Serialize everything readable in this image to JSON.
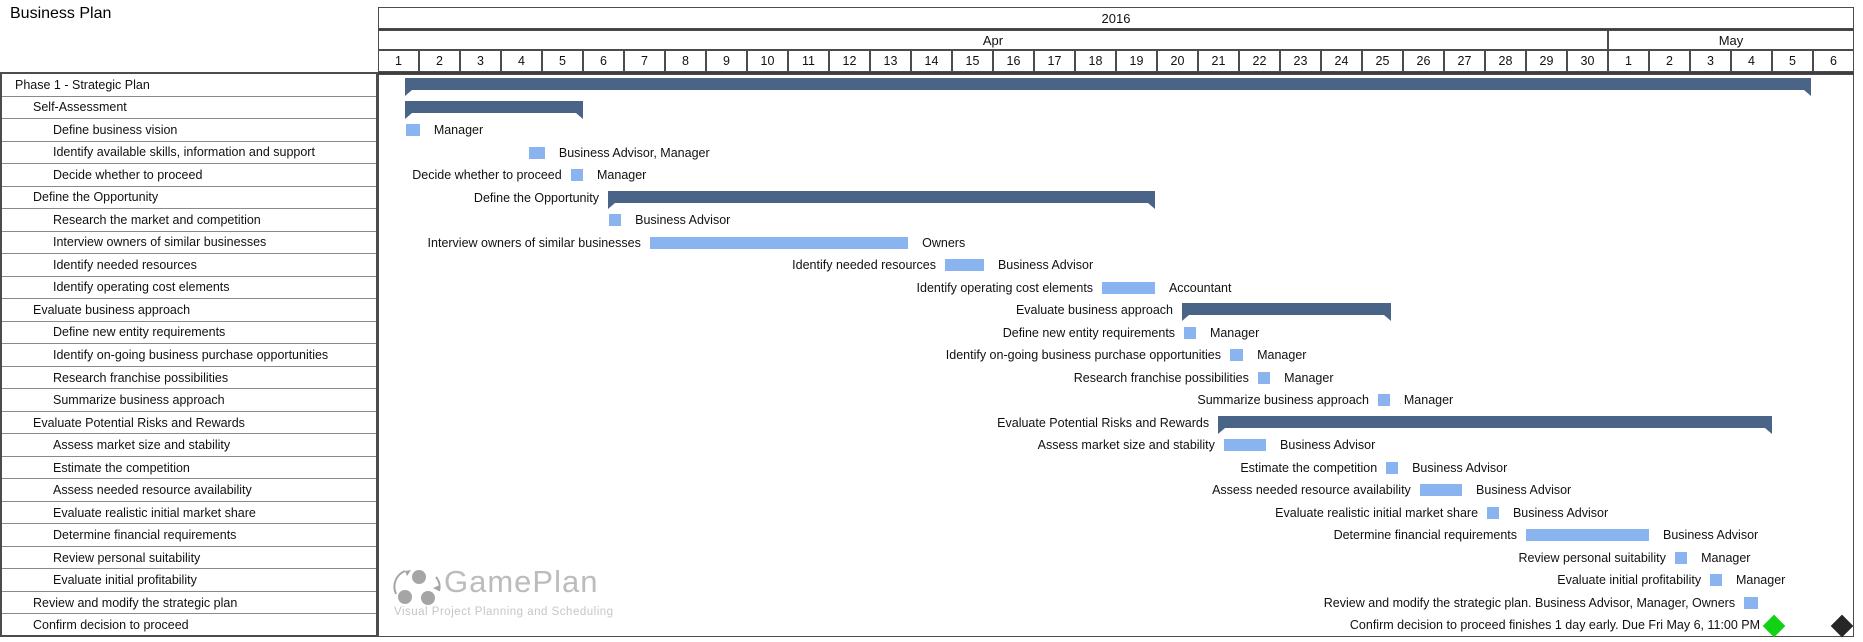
{
  "title": "Business Plan",
  "timeline": {
    "year": "2016",
    "months": [
      {
        "label": "Apr",
        "days": 30
      },
      {
        "label": "May",
        "days": 6
      }
    ]
  },
  "watermark": {
    "brand": "GamePlan",
    "tagline": "Visual Project Planning and Scheduling",
    "logo_icon": "three-circles-cycle-arrows"
  },
  "colors": {
    "summary_bar": "#4a6488",
    "task_bar": "#8ab4f0",
    "milestone_early_finish": "#15d115",
    "milestone_due": "#262626",
    "grid_dark": "#4c4c4c",
    "grid_mid": "#8a8a8a",
    "watermark_gray": "#bcbcbc"
  },
  "chart_data": {
    "type": "gantt",
    "title": "Business Plan",
    "time_axis": {
      "year": "2016",
      "months": [
        {
          "label": "Apr",
          "days": 30
        },
        {
          "label": "May",
          "days": 6
        }
      ],
      "day_origin": "days measured from Apr 1, 2016"
    },
    "legend": "none",
    "tasks": [
      {
        "name": "Phase 1 - Strategic Plan",
        "indent": 0,
        "kind": "summary",
        "start_day": 0.66,
        "end_day": 34.95,
        "resource": "",
        "show_label_left": false
      },
      {
        "name": "Self-Assessment",
        "indent": 1,
        "kind": "summary",
        "start_day": 0.66,
        "end_day": 5.0,
        "resource": "",
        "show_label_left": false
      },
      {
        "name": "Define business vision",
        "indent": 2,
        "kind": "task",
        "start_day": 0.68,
        "end_day": 1.02,
        "resource": "Manager",
        "show_label_left": false
      },
      {
        "name": "Identify available skills, information and support",
        "indent": 2,
        "kind": "task",
        "start_day": 3.68,
        "end_day": 4.07,
        "resource": "Business Advisor, Manager",
        "show_label_left": false
      },
      {
        "name": "Decide whether to proceed",
        "indent": 2,
        "kind": "task",
        "start_day": 4.7,
        "end_day": 5.0,
        "resource": "Manager",
        "show_label_left": true
      },
      {
        "name": "Define the Opportunity",
        "indent": 1,
        "kind": "summary",
        "start_day": 5.61,
        "end_day": 18.95,
        "resource": "",
        "show_label_left": true
      },
      {
        "name": "Research the market and competition",
        "indent": 2,
        "kind": "task",
        "start_day": 5.63,
        "end_day": 5.93,
        "resource": "Business Advisor",
        "show_label_left": false
      },
      {
        "name": "Interview owners of similar businesses",
        "indent": 2,
        "kind": "task",
        "start_day": 6.63,
        "end_day": 12.93,
        "resource": "Owners",
        "show_label_left": true
      },
      {
        "name": "Identify needed resources",
        "indent": 2,
        "kind": "task",
        "start_day": 13.83,
        "end_day": 14.78,
        "resource": "Business Advisor",
        "show_label_left": true
      },
      {
        "name": "Identify operating cost elements",
        "indent": 2,
        "kind": "task",
        "start_day": 17.66,
        "end_day": 18.95,
        "resource": "Accountant",
        "show_label_left": true
      },
      {
        "name": "Evaluate business approach",
        "indent": 1,
        "kind": "summary",
        "start_day": 19.61,
        "end_day": 24.7,
        "resource": "",
        "show_label_left": true
      },
      {
        "name": "Define new entity requirements",
        "indent": 2,
        "kind": "task",
        "start_day": 19.66,
        "end_day": 19.95,
        "resource": "Manager",
        "show_label_left": true
      },
      {
        "name": "Identify on-going business purchase opportunities",
        "indent": 2,
        "kind": "task",
        "start_day": 20.78,
        "end_day": 21.1,
        "resource": "Manager",
        "show_label_left": true
      },
      {
        "name": "Research franchise possibilities",
        "indent": 2,
        "kind": "task",
        "start_day": 21.46,
        "end_day": 21.76,
        "resource": "Manager",
        "show_label_left": true
      },
      {
        "name": "Summarize business approach",
        "indent": 2,
        "kind": "task",
        "start_day": 24.39,
        "end_day": 24.68,
        "resource": "Manager",
        "show_label_left": true
      },
      {
        "name": "Evaluate Potential Risks and Rewards",
        "indent": 1,
        "kind": "summary",
        "start_day": 20.49,
        "end_day": 34.0,
        "resource": "",
        "show_label_left": true
      },
      {
        "name": "Assess market size and stability",
        "indent": 2,
        "kind": "task",
        "start_day": 20.63,
        "end_day": 21.66,
        "resource": "Business Advisor",
        "show_label_left": true
      },
      {
        "name": "Estimate the competition",
        "indent": 2,
        "kind": "task",
        "start_day": 24.59,
        "end_day": 24.88,
        "resource": "Business Advisor",
        "show_label_left": true
      },
      {
        "name": "Assess needed resource availability",
        "indent": 2,
        "kind": "task",
        "start_day": 25.41,
        "end_day": 26.44,
        "resource": "Business Advisor",
        "show_label_left": true
      },
      {
        "name": "Evaluate realistic initial market share",
        "indent": 2,
        "kind": "task",
        "start_day": 27.05,
        "end_day": 27.34,
        "resource": "Business Advisor",
        "show_label_left": true
      },
      {
        "name": "Determine financial requirements",
        "indent": 2,
        "kind": "task",
        "start_day": 28.0,
        "end_day": 31.0,
        "resource": "Business Advisor",
        "show_label_left": true
      },
      {
        "name": "Review personal suitability",
        "indent": 2,
        "kind": "task",
        "start_day": 31.63,
        "end_day": 31.93,
        "resource": "Manager",
        "show_label_left": true
      },
      {
        "name": "Evaluate initial profitability",
        "indent": 2,
        "kind": "task",
        "start_day": 32.49,
        "end_day": 32.78,
        "resource": "Manager",
        "show_label_left": true
      },
      {
        "name": "Review and modify the strategic plan",
        "indent": 1,
        "kind": "task",
        "start_day": 33.32,
        "end_day": 33.66,
        "resource": "",
        "show_label_left": true,
        "chart_label": "Review and modify the strategic plan. Business Advisor, Manager, Owners"
      },
      {
        "name": "Confirm decision to proceed",
        "indent": 1,
        "kind": "milestones",
        "start_day": 34.05,
        "end_day": 35.71,
        "resource": "",
        "show_label_left": true,
        "chart_label": "Confirm decision to proceed finishes 1 day early. Due Fri May 6, 11:00 PM",
        "milestones": [
          {
            "day": 34.05,
            "color_key": "milestone_early_finish"
          },
          {
            "day": 35.71,
            "color_key": "milestone_due"
          }
        ]
      }
    ]
  }
}
